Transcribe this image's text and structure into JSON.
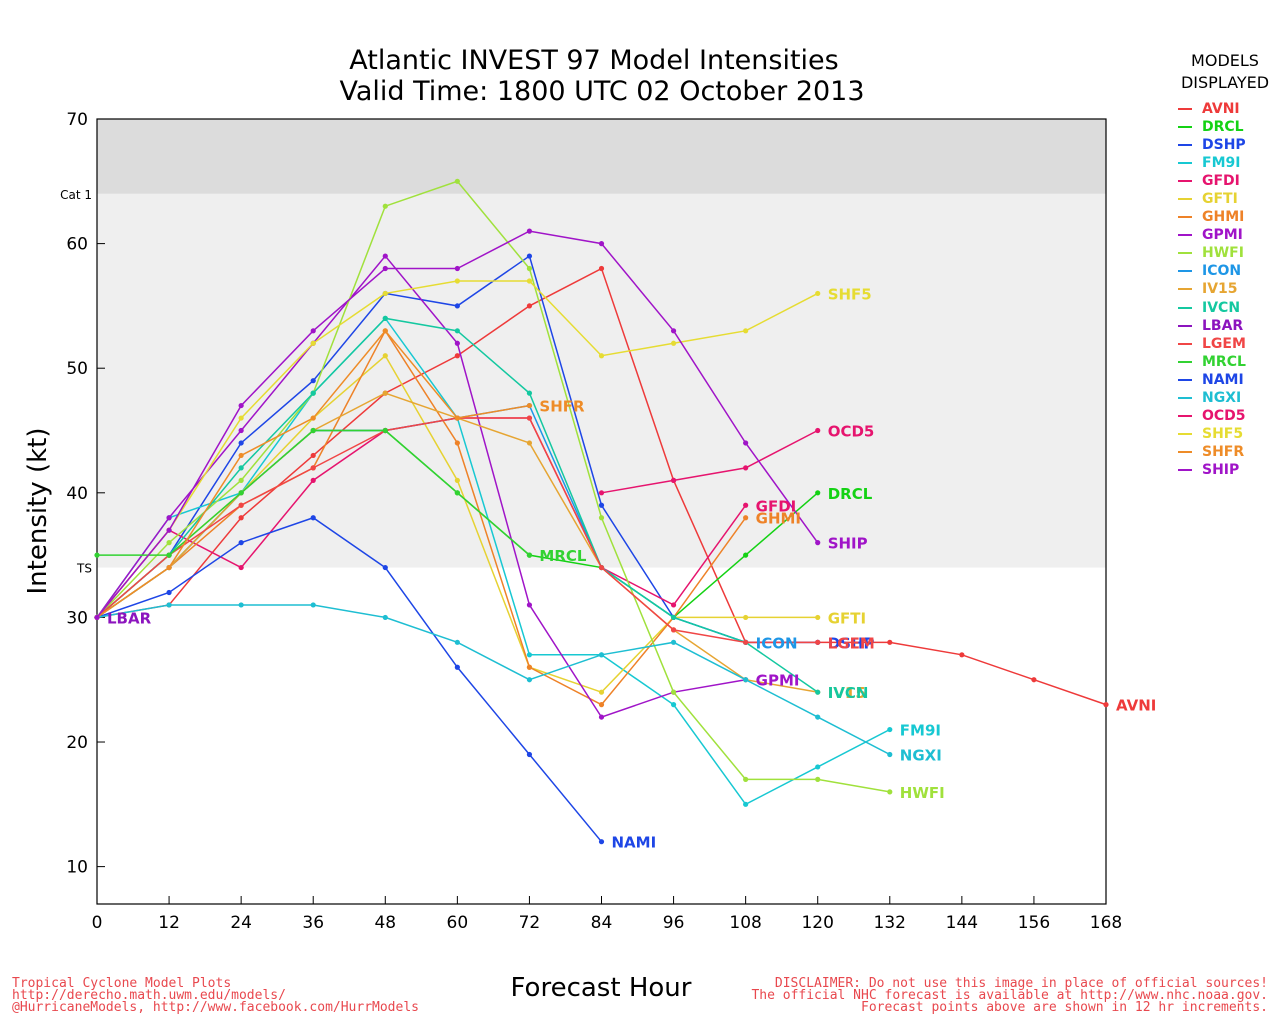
{
  "chart_data": {
    "type": "line",
    "title": "Atlantic INVEST 97 Model Intensities",
    "subtitle": "Valid Time: 1800 UTC 02 October 2013",
    "xlabel": "Forecast Hour",
    "ylabel": "Intensity (kt)",
    "xlim": [
      0,
      168
    ],
    "ylim": [
      7,
      70
    ],
    "x_ticks": [
      0,
      12,
      24,
      36,
      48,
      60,
      72,
      84,
      96,
      108,
      120,
      132,
      144,
      156,
      168
    ],
    "y_ticks": [
      10,
      20,
      30,
      40,
      50,
      60,
      70
    ],
    "bands": [
      {
        "label": "TS",
        "from": 34,
        "to": 64,
        "color": "#efefef"
      },
      {
        "label": "Cat 1",
        "from": 64,
        "to": 70,
        "color": "#dcdcdc"
      }
    ],
    "legend": {
      "title_line1": "MODELS",
      "title_line2": "DISPLAYED",
      "placement": "right"
    },
    "series": [
      {
        "name": "AVNI",
        "color": "#ee3a3a",
        "points": [
          [
            0,
            30
          ],
          [
            12,
            31
          ],
          [
            24,
            38
          ],
          [
            36,
            43
          ],
          [
            48,
            48
          ],
          [
            60,
            51
          ],
          [
            72,
            55
          ],
          [
            84,
            58
          ],
          [
            96,
            41
          ],
          [
            108,
            28
          ],
          [
            120,
            28
          ],
          [
            132,
            28
          ],
          [
            144,
            27
          ],
          [
            156,
            25
          ],
          [
            168,
            23
          ]
        ],
        "label": "AVNI"
      },
      {
        "name": "DRCL",
        "color": "#14d214",
        "points": [
          [
            0,
            30
          ],
          [
            12,
            34
          ],
          [
            24,
            40
          ],
          [
            36,
            45
          ],
          [
            48,
            45
          ],
          [
            60,
            40
          ],
          [
            72,
            35
          ],
          [
            84,
            34
          ],
          [
            96,
            30
          ],
          [
            108,
            35
          ],
          [
            120,
            40
          ]
        ],
        "label": "DRCL"
      },
      {
        "name": "DSHP",
        "color": "#1e46e6",
        "points": [
          [
            0,
            30
          ],
          [
            12,
            35
          ],
          [
            24,
            44
          ],
          [
            36,
            49
          ],
          [
            48,
            56
          ],
          [
            60,
            55
          ],
          [
            72,
            59
          ],
          [
            84,
            39
          ],
          [
            96,
            30
          ],
          [
            108,
            28
          ],
          [
            120,
            28
          ]
        ],
        "label": "DSHP"
      },
      {
        "name": "FM9I",
        "color": "#17c8d2",
        "points": [
          [
            0,
            30
          ],
          [
            12,
            38
          ],
          [
            24,
            40
          ],
          [
            36,
            48
          ],
          [
            48,
            54
          ],
          [
            60,
            46
          ],
          [
            72,
            27
          ],
          [
            84,
            27
          ],
          [
            96,
            23
          ],
          [
            108,
            15
          ],
          [
            120,
            18
          ],
          [
            132,
            21
          ]
        ],
        "label": "FM9I"
      },
      {
        "name": "GFDI",
        "color": "#e6146e",
        "points": [
          [
            0,
            30
          ],
          [
            12,
            37
          ],
          [
            24,
            34
          ],
          [
            36,
            41
          ],
          [
            48,
            45
          ],
          [
            60,
            46
          ],
          [
            72,
            46
          ],
          [
            84,
            34
          ],
          [
            96,
            31
          ],
          [
            108,
            39
          ]
        ],
        "label": "GFDI"
      },
      {
        "name": "GFTI",
        "color": "#e6d232",
        "points": [
          [
            0,
            30
          ],
          [
            12,
            35
          ],
          [
            24,
            40
          ],
          [
            36,
            46
          ],
          [
            48,
            51
          ],
          [
            60,
            41
          ],
          [
            72,
            26
          ],
          [
            84,
            24
          ],
          [
            96,
            30
          ],
          [
            108,
            30
          ],
          [
            120,
            30
          ]
        ],
        "label": "GFTI"
      },
      {
        "name": "GHMI",
        "color": "#ee8228",
        "points": [
          [
            0,
            30
          ],
          [
            12,
            34
          ],
          [
            24,
            39
          ],
          [
            36,
            42
          ],
          [
            48,
            53
          ],
          [
            60,
            44
          ],
          [
            72,
            26
          ],
          [
            84,
            23
          ],
          [
            96,
            30
          ],
          [
            108,
            38
          ]
        ],
        "label": "GHMI"
      },
      {
        "name": "GPMI",
        "color": "#a014c8",
        "points": [
          [
            0,
            30
          ],
          [
            12,
            38
          ],
          [
            24,
            45
          ],
          [
            36,
            52
          ],
          [
            48,
            59
          ],
          [
            60,
            52
          ],
          [
            72,
            31
          ],
          [
            84,
            22
          ],
          [
            96,
            24
          ],
          [
            108,
            25
          ]
        ],
        "label": "GPMI"
      },
      {
        "name": "HWFI",
        "color": "#a0e13c",
        "points": [
          [
            0,
            30
          ],
          [
            12,
            36
          ],
          [
            24,
            41
          ],
          [
            36,
            48
          ],
          [
            48,
            63
          ],
          [
            60,
            65
          ],
          [
            72,
            58
          ],
          [
            84,
            38
          ],
          [
            96,
            24
          ],
          [
            108,
            17
          ],
          [
            120,
            17
          ],
          [
            132,
            16
          ]
        ],
        "label": "HWFI"
      },
      {
        "name": "ICON",
        "color": "#1e96e6",
        "points": [
          [
            0,
            30
          ],
          [
            12,
            34
          ],
          [
            24,
            40
          ],
          [
            36,
            45
          ],
          [
            48,
            45
          ],
          [
            60,
            46
          ],
          [
            72,
            47
          ],
          [
            84,
            34
          ],
          [
            96,
            30
          ],
          [
            108,
            28
          ]
        ],
        "label": "ICON"
      },
      {
        "name": "IV15",
        "color": "#e6a532",
        "points": [
          [
            0,
            30
          ],
          [
            12,
            34
          ],
          [
            24,
            40
          ],
          [
            36,
            45
          ],
          [
            48,
            48
          ],
          [
            60,
            46
          ],
          [
            72,
            44
          ],
          [
            84,
            34
          ],
          [
            96,
            29
          ],
          [
            108,
            25
          ],
          [
            120,
            24
          ]
        ],
        "label": "IV15"
      },
      {
        "name": "IVCN",
        "color": "#14c8a0",
        "points": [
          [
            0,
            30
          ],
          [
            12,
            35
          ],
          [
            24,
            42
          ],
          [
            36,
            48
          ],
          [
            48,
            54
          ],
          [
            60,
            53
          ],
          [
            72,
            48
          ],
          [
            84,
            34
          ],
          [
            96,
            30
          ],
          [
            108,
            28
          ],
          [
            120,
            24
          ]
        ],
        "label": "IVCN"
      },
      {
        "name": "LBAR",
        "color": "#8c14be",
        "points": [
          [
            0,
            30
          ]
        ],
        "label": "LBAR"
      },
      {
        "name": "LGEM",
        "color": "#f04646",
        "points": [
          [
            0,
            30
          ],
          [
            12,
            35
          ],
          [
            24,
            39
          ],
          [
            36,
            42
          ],
          [
            48,
            45
          ],
          [
            60,
            46
          ],
          [
            72,
            46
          ],
          [
            84,
            34
          ],
          [
            96,
            29
          ],
          [
            108,
            28
          ],
          [
            120,
            28
          ]
        ],
        "label": "LGEM"
      },
      {
        "name": "MRCL",
        "color": "#32d232",
        "points": [
          [
            0,
            35
          ],
          [
            12,
            35
          ],
          [
            24,
            40
          ],
          [
            36,
            45
          ],
          [
            48,
            45
          ],
          [
            60,
            40
          ],
          [
            72,
            35
          ]
        ],
        "label": "MRCL"
      },
      {
        "name": "NAMI",
        "color": "#1e46e6",
        "points": [
          [
            0,
            30
          ],
          [
            12,
            32
          ],
          [
            24,
            36
          ],
          [
            36,
            38
          ],
          [
            48,
            34
          ],
          [
            60,
            26
          ],
          [
            72,
            19
          ],
          [
            84,
            12
          ]
        ],
        "label": "NAMI"
      },
      {
        "name": "NGXI",
        "color": "#1ebed2",
        "points": [
          [
            0,
            30
          ],
          [
            12,
            31
          ],
          [
            24,
            31
          ],
          [
            36,
            31
          ],
          [
            48,
            30
          ],
          [
            60,
            28
          ],
          [
            72,
            25
          ],
          [
            84,
            27
          ],
          [
            96,
            28
          ],
          [
            108,
            25
          ],
          [
            120,
            22
          ],
          [
            132,
            19
          ]
        ],
        "label": "NGXI"
      },
      {
        "name": "OCD5",
        "color": "#e6146e",
        "points": [
          [
            84,
            40
          ],
          [
            96,
            41
          ],
          [
            108,
            42
          ],
          [
            120,
            45
          ]
        ],
        "label": "OCD5"
      },
      {
        "name": "SHF5",
        "color": "#e6dc32",
        "points": [
          [
            0,
            30
          ],
          [
            12,
            37
          ],
          [
            24,
            46
          ],
          [
            36,
            52
          ],
          [
            48,
            56
          ],
          [
            60,
            57
          ],
          [
            72,
            57
          ],
          [
            84,
            51
          ],
          [
            96,
            52
          ],
          [
            108,
            53
          ],
          [
            120,
            56
          ]
        ],
        "label": "SHF5"
      },
      {
        "name": "SHFR",
        "color": "#ee8c28",
        "points": [
          [
            0,
            30
          ],
          [
            12,
            34
          ],
          [
            24,
            43
          ],
          [
            36,
            46
          ],
          [
            48,
            53
          ],
          [
            60,
            46
          ],
          [
            72,
            47
          ]
        ],
        "label": "SHFR"
      },
      {
        "name": "SHIP",
        "color": "#a014c8",
        "points": [
          [
            0,
            30
          ],
          [
            12,
            37
          ],
          [
            24,
            47
          ],
          [
            36,
            53
          ],
          [
            48,
            58
          ],
          [
            60,
            58
          ],
          [
            72,
            61
          ],
          [
            84,
            60
          ],
          [
            96,
            53
          ],
          [
            108,
            44
          ],
          [
            120,
            36
          ]
        ],
        "label": "SHIP"
      }
    ]
  },
  "footer": {
    "left_line1": "Tropical Cyclone Model Plots",
    "left_line2": "http://derecho.math.uwm.edu/models/",
    "left_line3": "@HurricaneModels, http://www.facebook.com/HurrModels",
    "right_line1": "DISCLAIMER: Do not use this image in place of official sources!",
    "right_line2": "The official NHC forecast is available at http://www.nhc.noaa.gov.",
    "right_line3": "Forecast points above are shown in 12 hr increments."
  }
}
